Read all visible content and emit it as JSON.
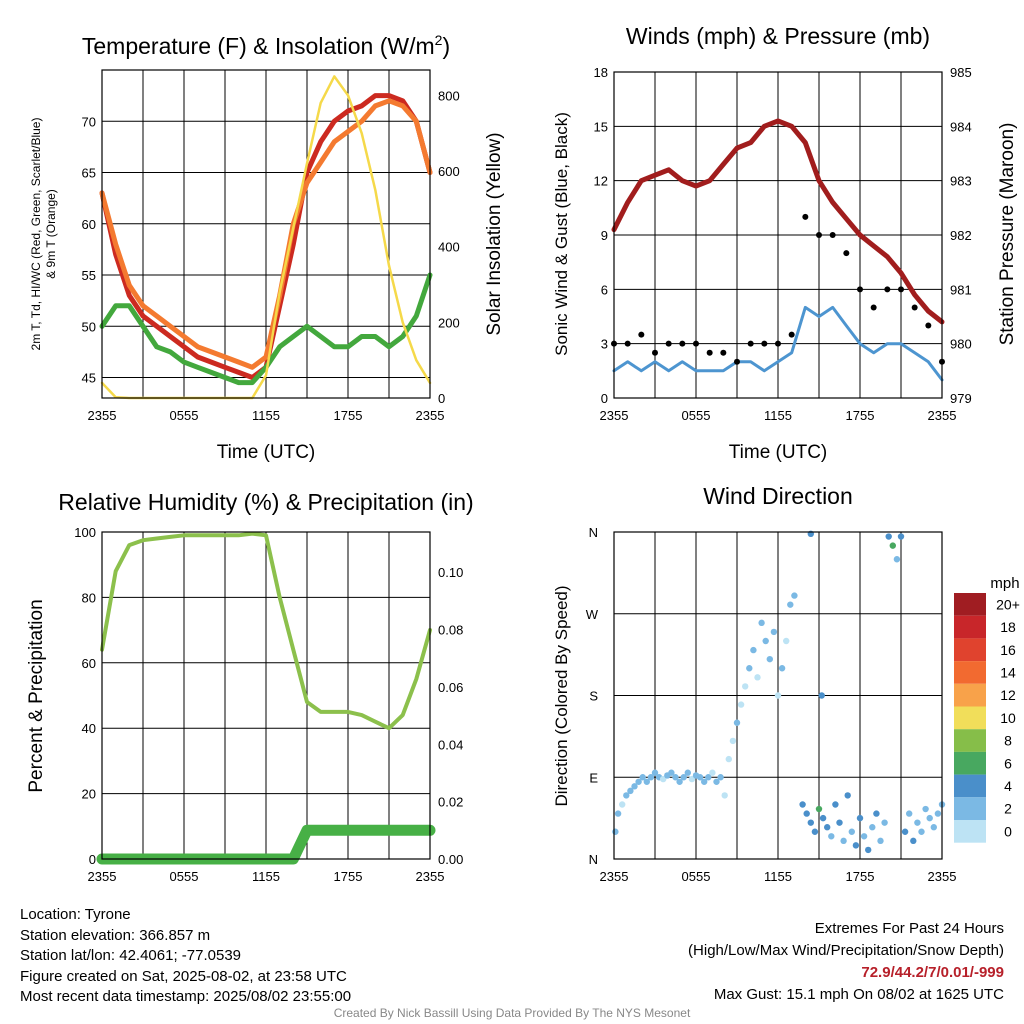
{
  "chart_data": [
    {
      "type": "line",
      "title": "Temperature (F) & Insolation (W/m²)",
      "title_main": "Temperature (F) & Insolation (W/m",
      "title_sup": "2",
      "title_close": ")",
      "xlabel": "Time (UTC)",
      "ylabel_line1": "2m T, Td, HI/WC (Red, Green, Scarlet/Blue)",
      "ylabel_line2": "& 9m T (Orange)",
      "ylabel_right": "Solar Insolation (Yellow)",
      "x_ticks": [
        "2355",
        "0555",
        "1155",
        "1755",
        "2355"
      ],
      "ylim": [
        43,
        75
      ],
      "y_ticks": [
        45,
        50,
        55,
        60,
        65,
        70
      ],
      "ylim_right": [
        0,
        867
      ],
      "y_ticks_right": [
        0,
        200,
        400,
        600,
        800
      ],
      "grid": true,
      "hours": [
        0,
        1,
        2,
        3,
        4,
        5,
        6,
        7,
        8,
        9,
        10,
        11,
        12,
        13,
        14,
        15,
        16,
        17,
        18,
        19,
        20,
        21,
        22,
        23,
        24
      ],
      "series": [
        {
          "color": "#cc2a20",
          "values": [
            63,
            57,
            53,
            51,
            50,
            49,
            48,
            47,
            46.5,
            46,
            45.5,
            45,
            46,
            52,
            58,
            65,
            68,
            70,
            71,
            71.5,
            72.5,
            72.5,
            72,
            70,
            65
          ]
        },
        {
          "color": "#f47a30",
          "values": [
            63,
            58,
            54,
            52,
            51,
            50,
            49,
            48,
            47.5,
            47,
            46.5,
            46,
            47,
            53,
            60,
            64,
            66,
            68,
            69,
            70,
            71.5,
            72,
            71.5,
            70,
            65
          ]
        },
        {
          "color": "#43a83d",
          "values": [
            50,
            52,
            52,
            50,
            48,
            47.5,
            46.5,
            46,
            45.5,
            45,
            44.5,
            44.5,
            46,
            48,
            49,
            50,
            49,
            48,
            48,
            49,
            49,
            48,
            49,
            51,
            55
          ]
        },
        {
          "color": "#f5d94a",
          "axis": "right",
          "values": [
            40,
            2,
            0,
            0,
            0,
            0,
            0,
            0,
            0,
            0,
            0,
            0,
            60,
            280,
            450,
            620,
            780,
            850,
            800,
            700,
            550,
            350,
            200,
            100,
            40
          ]
        }
      ]
    },
    {
      "type": "line",
      "title": "Winds (mph) & Pressure (mb)",
      "xlabel": "Time (UTC)",
      "ylabel": "Sonic Wind & Gust (Blue, Black)",
      "ylabel_right": "Station Pressure (Maroon)",
      "x_ticks": [
        "2355",
        "0555",
        "1155",
        "1755",
        "2355"
      ],
      "ylim": [
        0,
        18
      ],
      "y_ticks": [
        0,
        3,
        6,
        9,
        12,
        15,
        18
      ],
      "ylim_right": [
        979,
        985
      ],
      "y_ticks_right": [
        979,
        980,
        981,
        982,
        983,
        984,
        985
      ],
      "grid": true,
      "hours": [
        0,
        1,
        2,
        3,
        4,
        5,
        6,
        7,
        8,
        9,
        10,
        11,
        12,
        13,
        14,
        15,
        16,
        17,
        18,
        19,
        20,
        21,
        22,
        23,
        24
      ],
      "series": [
        {
          "color": "#4d95d0",
          "values": [
            1.5,
            2,
            1.5,
            2,
            1.5,
            2,
            1.5,
            1.5,
            1.5,
            2,
            2,
            1.5,
            2,
            2.5,
            5,
            4.5,
            5,
            4,
            3,
            2.5,
            3,
            3,
            2.5,
            2,
            1
          ]
        },
        {
          "color": "#000000",
          "style": "dots",
          "values": [
            3,
            3,
            3.5,
            2.5,
            3,
            3,
            3,
            2.5,
            2.5,
            2,
            3,
            3,
            3,
            3.5,
            10,
            9,
            9,
            8,
            6,
            5,
            6,
            6,
            5,
            4,
            2
          ]
        },
        {
          "color": "#a11d1d",
          "axis": "right",
          "values": [
            982.1,
            982.6,
            983.0,
            983.1,
            983.2,
            983.0,
            982.9,
            983.0,
            983.3,
            983.6,
            983.7,
            984.0,
            984.1,
            984.0,
            983.7,
            983.0,
            982.6,
            982.3,
            982.0,
            981.8,
            981.6,
            981.3,
            980.9,
            980.6,
            980.4
          ]
        }
      ]
    },
    {
      "type": "line",
      "title": "Relative Humidity (%) & Precipitation (in)",
      "ylabel": "Percent & Precipitation",
      "x_ticks": [
        "2355",
        "0555",
        "1155",
        "1755",
        "2355"
      ],
      "ylim": [
        0,
        100
      ],
      "y_ticks": [
        0,
        20,
        40,
        60,
        80,
        100
      ],
      "ylim_right": [
        0,
        0.114
      ],
      "y_ticks_right": [
        "0.00",
        "0.02",
        "0.04",
        "0.06",
        "0.08",
        "0.10"
      ],
      "grid": true,
      "hours": [
        0,
        1,
        2,
        3,
        4,
        5,
        6,
        7,
        8,
        9,
        10,
        11,
        12,
        13,
        14,
        15,
        16,
        17,
        18,
        19,
        20,
        21,
        22,
        23,
        24
      ],
      "series": [
        {
          "color": "#8cc04c",
          "values": [
            64,
            88,
            96,
            97.5,
            98,
            98.5,
            99,
            99,
            99,
            99,
            99,
            99.5,
            99,
            80,
            64,
            48,
            45,
            45,
            45,
            44,
            42,
            40,
            44,
            55,
            70
          ]
        },
        {
          "color": "#47b046",
          "axis": "right",
          "values": [
            0,
            0,
            0,
            0,
            0,
            0,
            0,
            0,
            0,
            0,
            0,
            0,
            0,
            0,
            0,
            0.01,
            0.01,
            0.01,
            0.01,
            0.01,
            0.01,
            0.01,
            0.01,
            0.01,
            0.01
          ]
        }
      ]
    },
    {
      "type": "scatter",
      "title": "Wind Direction",
      "ylabel": "Direction (Colored By Speed)",
      "x_ticks": [
        "2355",
        "0555",
        "1155",
        "1755",
        "2355"
      ],
      "y_ticks": [
        "N",
        "E",
        "S",
        "W",
        "N"
      ],
      "ylim": [
        0,
        360
      ],
      "grid": true,
      "legend_title": "mph",
      "legend": [
        "20+",
        "18",
        "16",
        "14",
        "12",
        "10",
        "8",
        "6",
        "4",
        "2",
        "0"
      ],
      "legend_colors": [
        "#a01d22",
        "#c8262a",
        "#e0432e",
        "#f26a30",
        "#f8a24a",
        "#f1de5a",
        "#86be49",
        "#48a860",
        "#4a8fca",
        "#7bb9e4",
        "#bde3f4"
      ],
      "points": [
        [
          0.1,
          30,
          2
        ],
        [
          0.3,
          50,
          2
        ],
        [
          0.6,
          60,
          1
        ],
        [
          0.9,
          70,
          2
        ],
        [
          1.2,
          75,
          2
        ],
        [
          1.5,
          80,
          2
        ],
        [
          1.8,
          85,
          3
        ],
        [
          2.1,
          90,
          2
        ],
        [
          2.4,
          85,
          2
        ],
        [
          2.7,
          90,
          2
        ],
        [
          3.0,
          95,
          2
        ],
        [
          3.3,
          90,
          2
        ],
        [
          3.6,
          88,
          1
        ],
        [
          3.9,
          92,
          2
        ],
        [
          4.2,
          95,
          2
        ],
        [
          4.5,
          90,
          2
        ],
        [
          4.8,
          85,
          2
        ],
        [
          5.1,
          90,
          2
        ],
        [
          5.4,
          95,
          2
        ],
        [
          5.7,
          88,
          1
        ],
        [
          6.0,
          92,
          2
        ],
        [
          6.3,
          90,
          2
        ],
        [
          6.6,
          85,
          2
        ],
        [
          6.9,
          90,
          2
        ],
        [
          7.2,
          95,
          1
        ],
        [
          7.5,
          85,
          2
        ],
        [
          7.8,
          90,
          2
        ],
        [
          8.1,
          70,
          1
        ],
        [
          8.4,
          110,
          1
        ],
        [
          8.7,
          130,
          1
        ],
        [
          9.0,
          150,
          2
        ],
        [
          9.3,
          170,
          1
        ],
        [
          9.6,
          190,
          1
        ],
        [
          9.9,
          210,
          2
        ],
        [
          10.2,
          230,
          2
        ],
        [
          10.5,
          200,
          1
        ],
        [
          10.8,
          260,
          2
        ],
        [
          11.1,
          240,
          2
        ],
        [
          11.4,
          220,
          3
        ],
        [
          11.7,
          250,
          2
        ],
        [
          12.0,
          180,
          1
        ],
        [
          12.3,
          210,
          2
        ],
        [
          12.6,
          240,
          1
        ],
        [
          12.9,
          280,
          2
        ],
        [
          13.2,
          290,
          3
        ],
        [
          13.8,
          60,
          4
        ],
        [
          14.1,
          50,
          5
        ],
        [
          14.4,
          40,
          5
        ],
        [
          14.7,
          30,
          4
        ],
        [
          15.0,
          55,
          6
        ],
        [
          15.3,
          45,
          5
        ],
        [
          15.6,
          35,
          4
        ],
        [
          15.9,
          25,
          3
        ],
        [
          16.2,
          60,
          5
        ],
        [
          16.5,
          40,
          4
        ],
        [
          16.8,
          20,
          3
        ],
        [
          17.1,
          70,
          4
        ],
        [
          17.4,
          30,
          3
        ],
        [
          17.7,
          15,
          4
        ],
        [
          18.0,
          45,
          4
        ],
        [
          18.3,
          25,
          3
        ],
        [
          18.6,
          10,
          4
        ],
        [
          18.9,
          35,
          3
        ],
        [
          19.2,
          50,
          4
        ],
        [
          19.5,
          20,
          3
        ],
        [
          19.8,
          40,
          3
        ],
        [
          20.1,
          355,
          4
        ],
        [
          20.4,
          345,
          6
        ],
        [
          20.7,
          330,
          3
        ],
        [
          21.0,
          355,
          4
        ],
        [
          21.3,
          30,
          4
        ],
        [
          21.6,
          50,
          3
        ],
        [
          21.9,
          20,
          4
        ],
        [
          22.2,
          40,
          3
        ],
        [
          22.5,
          30,
          3
        ],
        [
          22.8,
          55,
          2
        ],
        [
          23.1,
          45,
          3
        ],
        [
          23.4,
          35,
          2
        ],
        [
          23.7,
          50,
          2
        ],
        [
          24.0,
          60,
          2
        ],
        [
          14.4,
          358,
          4
        ],
        [
          15.2,
          180,
          4
        ]
      ]
    }
  ],
  "footer": {
    "location": "Location: Tyrone",
    "elevation": "Station elevation: 366.857 m",
    "latlon": "Station lat/lon: 42.4061; -77.0539",
    "created": "Figure created on Sat, 2025-08-02, at 23:58 UTC",
    "recent": "Most recent data timestamp: 2025/08/02 23:55:00",
    "extremes_title": "Extremes For Past 24 Hours",
    "extremes_fields": "(High/Low/Max Wind/Precipitation/Snow Depth)",
    "extremes_values": "72.9/44.2/7/0.01/-999",
    "max_gust": "Max Gust: 15.1 mph On 08/02 at 1625 UTC",
    "credit": "Created By Nick Bassill Using Data Provided By The NYS Mesonet"
  }
}
